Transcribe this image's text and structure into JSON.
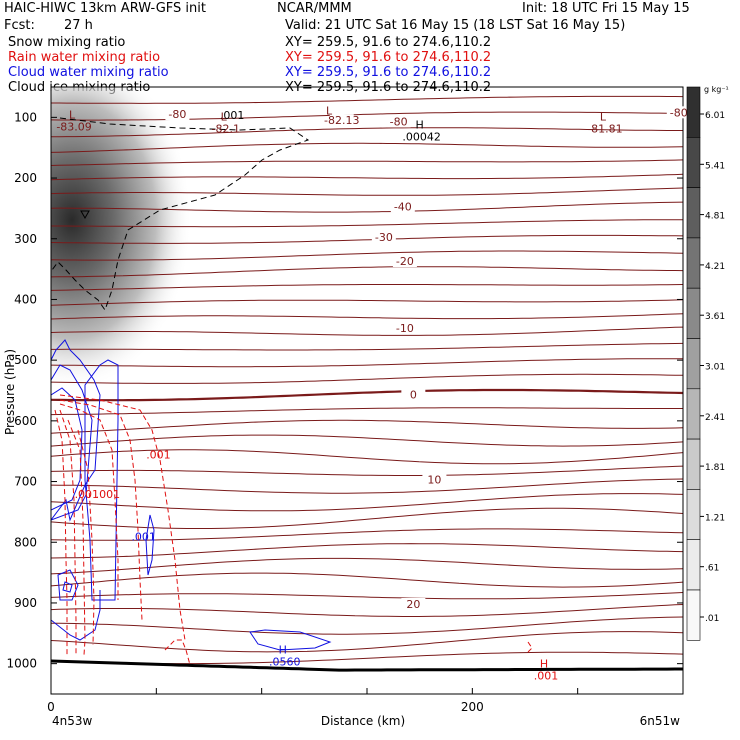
{
  "header": {
    "model": "HAIC-HIWC 13km ARW-GFS init",
    "org": "NCAR/MMM",
    "init": "Init: 18 UTC Fri 15 May 15",
    "fcst_label": "Fcst:",
    "fcst_value": "27 h",
    "valid": "Valid: 21 UTC Sat 16 May 15 (18 LST Sat 16 May 15)"
  },
  "fields": [
    {
      "name": "Snow mixing ratio",
      "xy": "XY= 259.5, 91.6 to 274.6,110.2",
      "color": "#000000"
    },
    {
      "name": "Rain water mixing ratio",
      "xy": "XY= 259.5, 91.6 to 274.6,110.2",
      "color": "#e01010"
    },
    {
      "name": "Cloud water mixing ratio",
      "xy": "XY= 259.5, 91.6 to 274.6,110.2",
      "color": "#1010e0"
    },
    {
      "name": "Cloud ice mixing ratio",
      "xy": "XY= 259.5, 91.6 to 274.6,110.2",
      "color": "#000000"
    }
  ],
  "chart_data": {
    "type": "cross-section",
    "xlabel": "Distance (km)",
    "ylabel": "Pressure (hPa)",
    "x_ticks": [
      0,
      200
    ],
    "x_range": [
      0,
      300
    ],
    "y_ticks": [
      100,
      200,
      300,
      400,
      500,
      600,
      700,
      800,
      900,
      1000
    ],
    "y_range": [
      50,
      1050
    ],
    "y_scale": "linear, pressure decreasing upward",
    "endpoints": {
      "left": "4n53w",
      "right": "6n51w"
    },
    "colorbar": {
      "unit": "g kg⁻¹",
      "labels": [
        "6.01",
        "5.41",
        "4.81",
        "4.21",
        "3.61",
        "3.01",
        "2.41",
        "1.81",
        "1.21",
        ".61",
        ".01"
      ],
      "colors": [
        "#303030",
        "#484848",
        "#5e5e5e",
        "#747474",
        "#8a8a8a",
        "#a0a0a0",
        "#b6b6b6",
        "#cacaca",
        "#dcdcdc",
        "#ececec",
        "#f8f8f8"
      ]
    },
    "temperature_labels": [
      {
        "text": "-80",
        "x": 60,
        "p": 98
      },
      {
        "text": "-82.13",
        "x": 138,
        "p": 108
      },
      {
        "text": "-80",
        "x": 165,
        "p": 110
      },
      {
        "text": "-80",
        "x": 298,
        "p": 95
      },
      {
        "text": "-40",
        "x": 167,
        "p": 250
      },
      {
        "text": "-30",
        "x": 158,
        "p": 300
      },
      {
        "text": "-20",
        "x": 168,
        "p": 340
      },
      {
        "text": "-10",
        "x": 168,
        "p": 450
      },
      {
        "text": "0",
        "x": 172,
        "p": 560
      },
      {
        "text": "10",
        "x": 182,
        "p": 700
      },
      {
        "text": "20",
        "x": 172,
        "p": 905
      }
    ],
    "extrema": [
      {
        "type": "L",
        "value": "-83.09",
        "x": 10,
        "p": 102
      },
      {
        "type": "L",
        "value": "-82.1",
        "x": 82,
        "p": 105
      },
      {
        "type": "L",
        "value": "",
        "x": 132,
        "p": 95
      },
      {
        "type": "L",
        "value": "-81.81",
        "x": 262,
        "p": 105
      },
      {
        "type": "H",
        "value": ".00042",
        "x": 175,
        "p": 118
      },
      {
        "type": "H",
        "value": ".0560",
        "x": 110,
        "p": 983
      },
      {
        "type": "H",
        "value": ".001",
        "x": 234,
        "p": 1006
      }
    ],
    "contour_labels": [
      {
        "text": ".001",
        "color": "#000000",
        "x": 86,
        "p": 103
      },
      {
        "text": ".001",
        "color": "#e01010",
        "x": 51,
        "p": 662
      },
      {
        "text": ".001",
        "color": "#e01010",
        "x": 17,
        "p": 727
      },
      {
        "text": ".001",
        "color": "#e01010",
        "x": 27,
        "p": 727
      },
      {
        "text": ".001",
        "color": "#1010e0",
        "x": 44,
        "p": 797
      }
    ],
    "isotherm_color": "#7a1a1a",
    "ground_color": "#000000"
  }
}
